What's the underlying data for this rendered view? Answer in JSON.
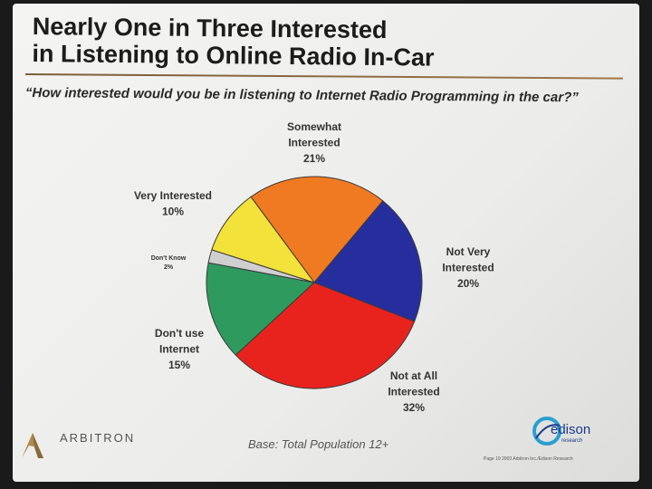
{
  "title": {
    "line1": "Nearly One in Three Interested",
    "line2": "in Listening to Online Radio In-Car"
  },
  "question": "“How interested would you be in listening to Internet Radio Programming in the car?”",
  "chart_data": {
    "type": "pie",
    "slices": [
      {
        "label": "Somewhat Interested",
        "label_lines": [
          "Somewhat",
          "Interested"
        ],
        "value_label": "21%",
        "value": 21,
        "color": "#f07a22"
      },
      {
        "label": "Not Very Interested",
        "label_lines": [
          "Not Very",
          "Interested"
        ],
        "value_label": "20%",
        "value": 20,
        "color": "#262e9e"
      },
      {
        "label": "Not at All Interested",
        "label_lines": [
          "Not at All",
          "Interested"
        ],
        "value_label": "32%",
        "value": 32,
        "color": "#e8231e"
      },
      {
        "label": "Don't use Internet",
        "label_lines": [
          "Don't use",
          "Internet"
        ],
        "value_label": "15%",
        "value": 15,
        "color": "#2f9a5e"
      },
      {
        "label": "Don't Know",
        "label_lines": [
          "Don't Know"
        ],
        "value_label": "2%",
        "value": 2,
        "color": "#cfcfcf"
      },
      {
        "label": "Very Interested",
        "label_lines": [
          "Very Interested"
        ],
        "value_label": "10%",
        "value": 10,
        "color": "#f2e23a"
      }
    ]
  },
  "footer": {
    "arbitron": "ARBITRON",
    "base_note": "Base:  Total Population 12+",
    "edison": "edison",
    "edison_sub": "research",
    "page_note": "Page 19     2003 Arbitron Inc./Edison Research"
  }
}
